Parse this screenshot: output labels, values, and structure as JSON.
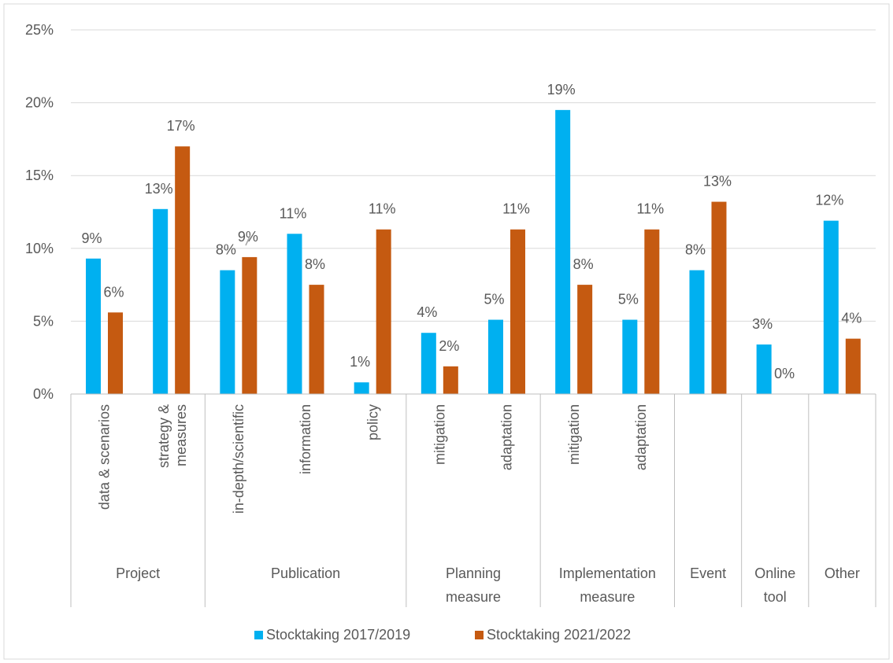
{
  "chart_data": {
    "type": "bar",
    "ylim": [
      0,
      25
    ],
    "y_ticks": [
      "0%",
      "5%",
      "10%",
      "15%",
      "20%",
      "25%"
    ],
    "y_tick_values": [
      0,
      5,
      10,
      15,
      20,
      25
    ],
    "grid": true,
    "legend_position": "bottom",
    "categories": [
      {
        "label": "data & scenarios",
        "group": "Project"
      },
      {
        "label": "strategy & measures",
        "group": "Project"
      },
      {
        "label": "in-depth/scientific",
        "group": "Publication"
      },
      {
        "label": "information",
        "group": "Publication"
      },
      {
        "label": "policy",
        "group": "Publication"
      },
      {
        "label": "mitigation",
        "group": "Planning measure"
      },
      {
        "label": "adaptation",
        "group": "Planning measure"
      },
      {
        "label": "mitigation",
        "group": "Implementation measure"
      },
      {
        "label": "adaptation",
        "group": "Implementation measure"
      },
      {
        "label": "",
        "group": "Event"
      },
      {
        "label": "",
        "group": "Online tool"
      },
      {
        "label": "",
        "group": "Other"
      }
    ],
    "groups": [
      "Project",
      "Publication",
      "Planning measure",
      "Implementation measure",
      "Event",
      "Online tool",
      "Other"
    ],
    "series": [
      {
        "name": "Stocktaking 2017/2019",
        "color": "#00B0F0",
        "values": [
          9.3,
          12.7,
          8.5,
          11.0,
          0.8,
          4.2,
          5.1,
          19.5,
          5.1,
          8.5,
          3.4,
          11.9
        ],
        "labels": [
          "9%",
          "13%",
          "8%",
          "11%",
          "1%",
          "4%",
          "5%",
          "19%",
          "5%",
          "8%",
          "3%",
          "12%"
        ]
      },
      {
        "name": "Stocktaking 2021/2022",
        "color": "#C55A11",
        "values": [
          5.6,
          17.0,
          9.4,
          7.5,
          11.3,
          1.9,
          11.3,
          7.5,
          11.3,
          13.2,
          0,
          3.8
        ],
        "labels": [
          "6%",
          "17%",
          "9%",
          "8%",
          "11%",
          "2%",
          "11%",
          "8%",
          "11%",
          "13%",
          "0%",
          "4%"
        ]
      }
    ]
  }
}
